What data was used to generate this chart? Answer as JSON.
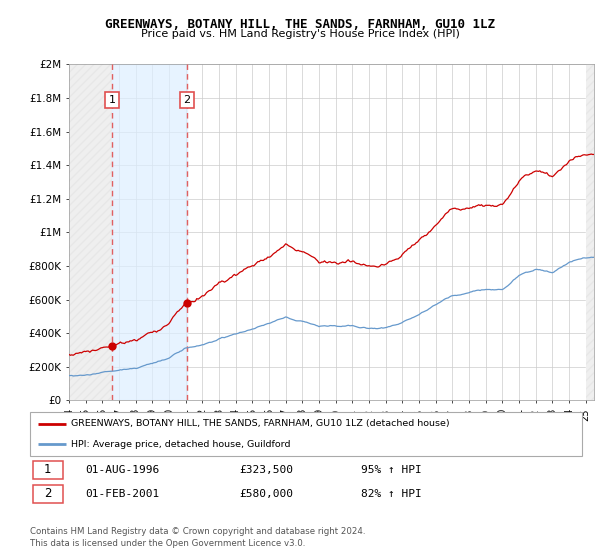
{
  "title": "GREENWAYS, BOTANY HILL, THE SANDS, FARNHAM, GU10 1LZ",
  "subtitle": "Price paid vs. HM Land Registry's House Price Index (HPI)",
  "legend_line1": "GREENWAYS, BOTANY HILL, THE SANDS, FARNHAM, GU10 1LZ (detached house)",
  "legend_line2": "HPI: Average price, detached house, Guildford",
  "sale1_date": "01-AUG-1996",
  "sale1_price": "£323,500",
  "sale1_hpi": "95% ↑ HPI",
  "sale2_date": "01-FEB-2001",
  "sale2_price": "£580,000",
  "sale2_hpi": "82% ↑ HPI",
  "footer": "Contains HM Land Registry data © Crown copyright and database right 2024.\nThis data is licensed under the Open Government Licence v3.0.",
  "red_color": "#cc0000",
  "blue_color": "#6699cc",
  "dashed_red": "#e05050",
  "ylim": [
    0,
    2000000
  ],
  "xlim_start": 1994.0,
  "xlim_end": 2025.5,
  "sale1_x": 1996.583,
  "sale1_y": 323500,
  "sale2_x": 2001.083,
  "sale2_y": 580000,
  "yticks": [
    0,
    200000,
    400000,
    600000,
    800000,
    1000000,
    1200000,
    1400000,
    1600000,
    1800000,
    2000000
  ],
  "ytick_labels": [
    "£0",
    "£200K",
    "£400K",
    "£600K",
    "£800K",
    "£1M",
    "£1.2M",
    "£1.4M",
    "£1.6M",
    "£1.8M",
    "£2M"
  ],
  "xticks": [
    1994,
    1995,
    1996,
    1997,
    1998,
    1999,
    2000,
    2001,
    2002,
    2003,
    2004,
    2005,
    2006,
    2007,
    2008,
    2009,
    2010,
    2011,
    2012,
    2013,
    2014,
    2015,
    2016,
    2017,
    2018,
    2019,
    2020,
    2021,
    2022,
    2023,
    2024,
    2025
  ],
  "xtick_labels": [
    "94",
    "95",
    "96",
    "97",
    "98",
    "99",
    "00",
    "01",
    "02",
    "03",
    "04",
    "05",
    "06",
    "07",
    "08",
    "09",
    "10",
    "11",
    "12",
    "13",
    "14",
    "15",
    "16",
    "17",
    "18",
    "19",
    "20",
    "21",
    "22",
    "23",
    "24",
    "25"
  ]
}
